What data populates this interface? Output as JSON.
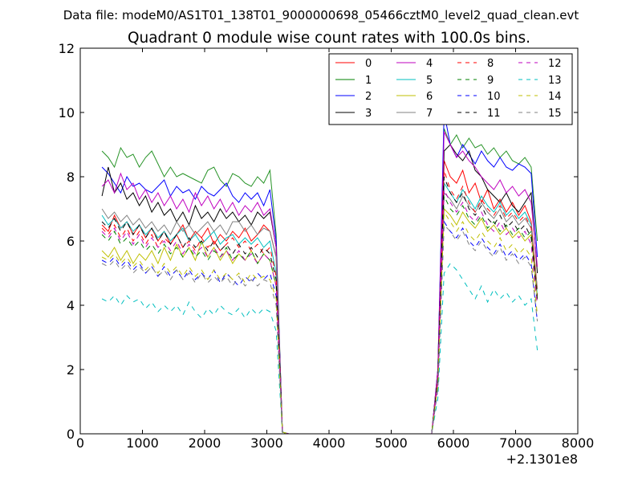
{
  "chart_data": {
    "type": "line",
    "suptitle": "Data file: modeM0/AS1T01_138T01_9000000698_05466cztM0_level2_quad_clean.evt",
    "title": "Quadrant 0 module wise count rates with 100.0s bins.",
    "xlabel": "",
    "ylabel": "",
    "x_offset_label": "+2.1301e8",
    "xlim": [
      0,
      8000
    ],
    "ylim": [
      0,
      12
    ],
    "x_ticks": [
      0,
      1000,
      2000,
      3000,
      4000,
      5000,
      6000,
      7000,
      8000
    ],
    "y_ticks": [
      0,
      2,
      4,
      6,
      8,
      10,
      12
    ],
    "x_tick_labels": [
      "0",
      "1000",
      "2000",
      "3000",
      "4000",
      "5000",
      "6000",
      "7000",
      "8000"
    ],
    "y_tick_labels": [
      "0",
      "2",
      "4",
      "6",
      "8",
      "10",
      "12"
    ],
    "grid": false,
    "legend_position": "top-right",
    "x": [
      350,
      450,
      550,
      650,
      750,
      850,
      950,
      1050,
      1150,
      1250,
      1350,
      1450,
      1550,
      1650,
      1750,
      1850,
      1950,
      2050,
      2150,
      2250,
      2350,
      2450,
      2550,
      2650,
      2750,
      2850,
      2950,
      3050,
      3150,
      3250,
      3350,
      3450,
      3550,
      3650,
      3750,
      3850,
      3950,
      4050,
      4150,
      4250,
      4350,
      4450,
      4550,
      4650,
      4750,
      4850,
      4950,
      5050,
      5150,
      5250,
      5350,
      5450,
      5550,
      5650,
      5750,
      5850,
      5950,
      6050,
      6150,
      6250,
      6350,
      6450,
      6550,
      6650,
      6750,
      6850,
      6950,
      7050,
      7150,
      7250,
      7350
    ],
    "series": [
      {
        "name": "0",
        "color": "#ff0000",
        "dash": "solid",
        "values": [
          6.5,
          6.3,
          6.8,
          6.4,
          6.6,
          6.2,
          6.5,
          6.1,
          6.4,
          6.0,
          6.3,
          5.9,
          6.2,
          6.5,
          6.0,
          6.3,
          6.1,
          6.4,
          5.9,
          6.2,
          6.0,
          6.3,
          6.1,
          6.4,
          6.0,
          6.2,
          6.5,
          6.3,
          5.5,
          0.05,
          0,
          0,
          0,
          0,
          0,
          0,
          0,
          0,
          0,
          0,
          0,
          0,
          0,
          0,
          0,
          0,
          0,
          0,
          0,
          0,
          0,
          0,
          0,
          0,
          1.8,
          8.5,
          8.0,
          7.8,
          8.2,
          7.5,
          7.8,
          7.2,
          7.6,
          7.0,
          7.3,
          6.9,
          7.2,
          6.8,
          7.1,
          6.6,
          4.5
        ]
      },
      {
        "name": "1",
        "color": "#008000",
        "dash": "solid",
        "values": [
          8.8,
          8.6,
          8.3,
          8.9,
          8.6,
          8.7,
          8.3,
          8.6,
          8.8,
          8.4,
          8.0,
          8.3,
          8.0,
          8.1,
          8.0,
          7.9,
          7.8,
          8.2,
          8.3,
          7.9,
          7.7,
          8.1,
          8.0,
          7.8,
          7.7,
          8.0,
          7.8,
          8.2,
          6.2,
          0.05,
          0,
          0,
          0,
          0,
          0,
          0,
          0,
          0,
          0,
          0,
          0,
          0,
          0,
          0,
          0,
          0,
          0,
          0,
          0,
          0,
          0,
          0,
          0,
          0,
          2.0,
          9.5,
          9.0,
          9.3,
          8.9,
          9.2,
          8.9,
          9.0,
          8.7,
          8.9,
          8.6,
          8.8,
          8.5,
          8.4,
          8.6,
          8.3,
          6.0
        ]
      },
      {
        "name": "2",
        "color": "#0000ff",
        "dash": "solid",
        "values": [
          8.3,
          8.1,
          7.8,
          7.5,
          8.0,
          7.7,
          7.8,
          7.6,
          7.5,
          7.7,
          7.9,
          7.4,
          7.7,
          7.5,
          7.6,
          7.3,
          7.7,
          7.5,
          7.4,
          7.6,
          7.8,
          7.4,
          7.2,
          7.5,
          7.3,
          7.5,
          7.1,
          7.6,
          6.0,
          0.05,
          0,
          0,
          0,
          0,
          0,
          0,
          0,
          0,
          0,
          0,
          0,
          0,
          0,
          0,
          0,
          0,
          0,
          0,
          0,
          0,
          0,
          0,
          0,
          0,
          2.0,
          10.0,
          9.0,
          8.6,
          9.0,
          8.7,
          8.4,
          8.8,
          8.5,
          8.3,
          8.6,
          8.3,
          8.2,
          8.4,
          8.3,
          8.1,
          5.5
        ]
      },
      {
        "name": "3",
        "color": "#000000",
        "dash": "solid",
        "values": [
          7.4,
          8.3,
          7.5,
          7.8,
          7.3,
          7.5,
          7.1,
          7.4,
          6.9,
          7.2,
          6.8,
          7.0,
          6.6,
          6.9,
          6.5,
          7.1,
          6.7,
          6.9,
          6.6,
          7.0,
          6.7,
          6.9,
          6.6,
          6.8,
          6.5,
          6.9,
          6.7,
          6.9,
          5.8,
          0.05,
          0,
          0,
          0,
          0,
          0,
          0,
          0,
          0,
          0,
          0,
          0,
          0,
          0,
          0,
          0,
          0,
          0,
          0,
          0,
          0,
          0,
          0,
          0,
          0,
          1.9,
          8.8,
          9.0,
          8.7,
          8.5,
          8.8,
          8.2,
          8.0,
          7.6,
          7.4,
          7.2,
          7.5,
          7.1,
          6.9,
          7.2,
          7.5,
          5.0
        ]
      },
      {
        "name": "4",
        "color": "#bf00bf",
        "dash": "solid",
        "values": [
          7.7,
          7.9,
          7.5,
          8.1,
          7.6,
          7.8,
          7.3,
          7.6,
          7.2,
          7.5,
          7.1,
          7.4,
          7.0,
          7.3,
          6.9,
          7.5,
          7.1,
          7.4,
          7.0,
          7.3,
          6.9,
          7.2,
          6.8,
          7.1,
          6.9,
          7.2,
          6.8,
          7.0,
          5.8,
          0.05,
          0,
          0,
          0,
          0,
          0,
          0,
          0,
          0,
          0,
          0,
          0,
          0,
          0,
          0,
          0,
          0,
          0,
          0,
          0,
          0,
          0,
          0,
          0,
          0,
          2.0,
          9.4,
          9.0,
          8.6,
          8.8,
          8.5,
          8.3,
          8.0,
          7.8,
          7.6,
          7.9,
          7.5,
          7.7,
          7.4,
          7.6,
          7.2,
          5.2
        ]
      },
      {
        "name": "5",
        "color": "#00bfbf",
        "dash": "solid",
        "values": [
          6.8,
          6.5,
          6.7,
          6.4,
          6.6,
          6.3,
          6.5,
          6.2,
          6.4,
          6.1,
          6.3,
          6.0,
          6.2,
          6.4,
          6.0,
          6.2,
          5.9,
          6.1,
          6.3,
          5.9,
          6.1,
          6.2,
          5.9,
          6.1,
          5.9,
          6.1,
          5.8,
          6.0,
          5.0,
          0.05,
          0,
          0,
          0,
          0,
          0,
          0,
          0,
          0,
          0,
          0,
          0,
          0,
          0,
          0,
          0,
          0,
          0,
          0,
          0,
          0,
          0,
          0,
          0,
          0,
          1.7,
          7.8,
          7.5,
          7.2,
          7.6,
          7.3,
          7.0,
          7.4,
          7.1,
          6.9,
          7.2,
          6.8,
          7.0,
          6.7,
          6.9,
          6.5,
          4.3
        ]
      },
      {
        "name": "6",
        "color": "#bfbf00",
        "dash": "solid",
        "values": [
          5.7,
          5.5,
          5.8,
          5.4,
          5.7,
          5.3,
          5.6,
          5.4,
          5.7,
          5.3,
          5.8,
          5.4,
          5.9,
          5.5,
          5.8,
          5.4,
          6.0,
          5.5,
          5.8,
          5.4,
          5.7,
          5.3,
          5.6,
          5.4,
          5.7,
          5.3,
          5.6,
          5.4,
          4.6,
          0.05,
          0,
          0,
          0,
          0,
          0,
          0,
          0,
          0,
          0,
          0,
          0,
          0,
          0,
          0,
          0,
          0,
          0,
          0,
          0,
          0,
          0,
          0,
          0,
          0,
          1.6,
          7.0,
          6.8,
          6.5,
          6.9,
          6.6,
          6.4,
          6.7,
          6.3,
          6.5,
          6.2,
          6.4,
          6.1,
          6.3,
          6.0,
          6.2,
          4.2
        ]
      },
      {
        "name": "7",
        "color": "#808080",
        "dash": "solid",
        "values": [
          7.0,
          6.7,
          6.9,
          6.6,
          6.8,
          6.5,
          6.7,
          6.4,
          6.6,
          6.3,
          6.5,
          6.2,
          6.6,
          6.3,
          6.5,
          6.2,
          6.4,
          6.6,
          6.3,
          6.5,
          6.2,
          6.6,
          6.6,
          6.3,
          6.5,
          6.2,
          6.4,
          6.3,
          5.5,
          0.05,
          0,
          0,
          0,
          0,
          0,
          0,
          0,
          0,
          0,
          0,
          0,
          0,
          0,
          0,
          0,
          0,
          0,
          0,
          0,
          0,
          0,
          0,
          0,
          0,
          1.8,
          7.5,
          7.3,
          7.0,
          7.4,
          7.1,
          6.9,
          7.2,
          6.9,
          6.7,
          7.0,
          6.6,
          6.8,
          6.5,
          6.7,
          6.4,
          4.5
        ]
      },
      {
        "name": "8",
        "color": "#ff0000",
        "dash": "dashed",
        "values": [
          6.4,
          6.2,
          6.5,
          6.1,
          6.4,
          6.0,
          6.3,
          5.9,
          6.2,
          5.8,
          6.1,
          5.9,
          6.2,
          5.8,
          6.0,
          5.7,
          6.1,
          5.8,
          6.0,
          5.7,
          5.9,
          6.1,
          5.8,
          6.0,
          5.7,
          5.9,
          5.6,
          5.8,
          4.9,
          0.05,
          0,
          0,
          0,
          0,
          0,
          0,
          0,
          0,
          0,
          0,
          0,
          0,
          0,
          0,
          0,
          0,
          0,
          0,
          0,
          0,
          0,
          0,
          0,
          0,
          1.7,
          8.2,
          7.6,
          7.3,
          7.7,
          7.2,
          6.9,
          7.3,
          7.0,
          6.8,
          7.1,
          6.7,
          6.9,
          6.6,
          6.8,
          6.4,
          4.3
        ]
      },
      {
        "name": "9",
        "color": "#008000",
        "dash": "dashed",
        "values": [
          6.2,
          6.0,
          6.3,
          5.9,
          6.1,
          5.8,
          6.0,
          5.7,
          5.9,
          5.6,
          5.9,
          5.6,
          5.8,
          5.5,
          5.8,
          5.5,
          5.7,
          5.4,
          5.7,
          5.5,
          5.8,
          5.4,
          5.6,
          5.4,
          5.7,
          5.3,
          5.6,
          5.4,
          4.6,
          0.05,
          0,
          0,
          0,
          0,
          0,
          0,
          0,
          0,
          0,
          0,
          0,
          0,
          0,
          0,
          0,
          0,
          0,
          0,
          0,
          0,
          0,
          0,
          0,
          0,
          1.6,
          7.4,
          7.0,
          6.8,
          7.1,
          6.7,
          6.5,
          6.8,
          6.4,
          6.6,
          6.3,
          6.5,
          6.2,
          6.4,
          6.1,
          6.3,
          4.2
        ]
      },
      {
        "name": "10",
        "color": "#0000ff",
        "dash": "dashed",
        "values": [
          5.4,
          5.3,
          5.5,
          5.2,
          5.4,
          5.1,
          5.3,
          5.0,
          5.2,
          4.9,
          5.2,
          4.9,
          5.1,
          4.8,
          5.1,
          4.8,
          5.0,
          4.8,
          5.1,
          4.7,
          5.0,
          4.8,
          4.6,
          4.9,
          4.7,
          5.0,
          4.8,
          5.0,
          4.3,
          0.05,
          0,
          0,
          0,
          0,
          0,
          0,
          0,
          0,
          0,
          0,
          0,
          0,
          0,
          0,
          0,
          0,
          0,
          0,
          0,
          0,
          0,
          0,
          0,
          0,
          1.4,
          6.6,
          6.3,
          6.1,
          6.4,
          6.0,
          5.8,
          6.1,
          5.8,
          5.6,
          5.9,
          5.5,
          5.7,
          5.4,
          5.6,
          5.3,
          3.5
        ]
      },
      {
        "name": "11",
        "color": "#000000",
        "dash": "dashed",
        "values": [
          6.6,
          6.4,
          6.7,
          6.3,
          6.6,
          6.2,
          6.5,
          6.1,
          6.4,
          6.0,
          6.3,
          5.9,
          6.2,
          5.8,
          6.1,
          5.8,
          6.0,
          5.7,
          6.0,
          5.7,
          5.9,
          5.6,
          5.9,
          5.6,
          5.8,
          5.5,
          5.8,
          5.6,
          4.8,
          0.05,
          0,
          0,
          0,
          0,
          0,
          0,
          0,
          0,
          0,
          0,
          0,
          0,
          0,
          0,
          0,
          0,
          0,
          0,
          0,
          0,
          0,
          0,
          0,
          0,
          1.7,
          8.0,
          7.5,
          7.2,
          7.5,
          7.0,
          6.8,
          7.1,
          6.7,
          6.5,
          6.8,
          6.4,
          6.6,
          6.3,
          6.5,
          6.1,
          4.1
        ]
      },
      {
        "name": "12",
        "color": "#bf00bf",
        "dash": "dashed",
        "values": [
          6.3,
          6.1,
          6.4,
          6.0,
          6.3,
          5.9,
          6.2,
          5.8,
          6.1,
          5.8,
          6.0,
          5.7,
          6.0,
          5.6,
          5.9,
          5.6,
          5.8,
          5.5,
          5.8,
          5.5,
          5.7,
          5.4,
          5.7,
          5.4,
          5.6,
          5.3,
          5.6,
          5.4,
          4.6,
          0.05,
          0,
          0,
          0,
          0,
          0,
          0,
          0,
          0,
          0,
          0,
          0,
          0,
          0,
          0,
          0,
          0,
          0,
          0,
          0,
          0,
          0,
          0,
          0,
          0,
          1.6,
          7.6,
          7.2,
          6.9,
          7.2,
          6.8,
          6.6,
          6.9,
          6.5,
          6.3,
          6.6,
          6.2,
          6.4,
          6.1,
          6.3,
          5.9,
          4.0
        ]
      },
      {
        "name": "13",
        "color": "#00bfbf",
        "dash": "dashed",
        "values": [
          4.2,
          4.1,
          4.3,
          4.0,
          4.3,
          4.1,
          4.2,
          3.9,
          4.1,
          3.8,
          4.0,
          3.8,
          4.0,
          3.7,
          4.1,
          3.8,
          3.6,
          3.9,
          3.7,
          4.0,
          3.8,
          3.7,
          3.9,
          3.6,
          3.9,
          3.7,
          3.9,
          3.8,
          3.2,
          0.05,
          0,
          0,
          0,
          0,
          0,
          0,
          0,
          0,
          0,
          0,
          0,
          0,
          0,
          0,
          0,
          0,
          0,
          0,
          0,
          0,
          0,
          0,
          0,
          0,
          1.1,
          5.0,
          5.3,
          5.1,
          4.8,
          4.5,
          4.2,
          4.6,
          4.1,
          4.5,
          4.2,
          4.4,
          4.1,
          4.3,
          4.0,
          4.2,
          2.6
        ]
      },
      {
        "name": "14",
        "color": "#bfbf00",
        "dash": "dashed",
        "values": [
          5.5,
          5.4,
          5.6,
          5.3,
          5.5,
          5.2,
          5.4,
          5.1,
          5.3,
          5.0,
          5.3,
          5.0,
          5.2,
          4.9,
          5.2,
          4.9,
          5.1,
          4.8,
          5.1,
          4.8,
          5.0,
          4.8,
          5.0,
          4.7,
          5.0,
          4.8,
          4.9,
          4.8,
          4.2,
          0.05,
          0,
          0,
          0,
          0,
          0,
          0,
          0,
          0,
          0,
          0,
          0,
          0,
          0,
          0,
          0,
          0,
          0,
          0,
          0,
          0,
          0,
          0,
          0,
          0,
          1.5,
          6.9,
          6.6,
          6.3,
          6.6,
          6.2,
          6.0,
          6.3,
          6.0,
          5.8,
          6.1,
          5.7,
          5.9,
          5.6,
          5.8,
          5.5,
          3.7
        ]
      },
      {
        "name": "15",
        "color": "#808080",
        "dash": "dashed",
        "values": [
          5.3,
          5.2,
          5.4,
          5.1,
          5.3,
          5.0,
          5.2,
          5.0,
          5.2,
          4.9,
          5.1,
          4.8,
          5.1,
          4.8,
          5.0,
          4.7,
          5.0,
          4.7,
          4.9,
          4.7,
          4.9,
          4.6,
          4.9,
          4.6,
          4.8,
          4.6,
          4.8,
          4.7,
          4.0,
          0.05,
          0,
          0,
          0,
          0,
          0,
          0,
          0,
          0,
          0,
          0,
          0,
          0,
          0,
          0,
          0,
          0,
          0,
          0,
          0,
          0,
          0,
          0,
          0,
          0,
          1.4,
          6.5,
          6.3,
          6.0,
          6.3,
          5.9,
          5.7,
          6.0,
          5.7,
          5.5,
          5.8,
          5.4,
          5.6,
          5.3,
          5.5,
          5.2,
          3.5
        ]
      }
    ]
  }
}
